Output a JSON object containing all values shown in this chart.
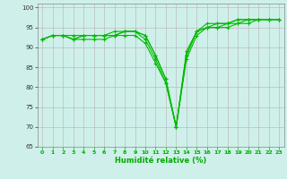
{
  "xlabel": "Humidité relative (%)",
  "ylabel": "",
  "bg_color": "#cff0ea",
  "grid_color": "#bbbbbb",
  "line_color": "#00bb00",
  "label_color": "#00aa00",
  "xlim": [
    -0.5,
    23.5
  ],
  "ylim": [
    65,
    101
  ],
  "yticks": [
    65,
    70,
    75,
    80,
    85,
    90,
    95,
    100
  ],
  "xticks": [
    0,
    1,
    2,
    3,
    4,
    5,
    6,
    7,
    8,
    9,
    10,
    11,
    12,
    13,
    14,
    15,
    16,
    17,
    18,
    19,
    20,
    21,
    22,
    23
  ],
  "series": [
    [
      92,
      93,
      93,
      92,
      93,
      93,
      93,
      93,
      93,
      93,
      91,
      86,
      81,
      70,
      87,
      93,
      95,
      95,
      96,
      96,
      97,
      97,
      97,
      97
    ],
    [
      92,
      93,
      93,
      93,
      93,
      93,
      93,
      93,
      94,
      94,
      92,
      87,
      81,
      70,
      88,
      94,
      95,
      96,
      96,
      97,
      97,
      97,
      97,
      97
    ],
    [
      92,
      93,
      93,
      92,
      93,
      93,
      93,
      94,
      94,
      94,
      93,
      88,
      82,
      70,
      89,
      94,
      96,
      96,
      96,
      97,
      97,
      97,
      97,
      97
    ],
    [
      92,
      93,
      93,
      92,
      92,
      92,
      92,
      93,
      94,
      94,
      93,
      88,
      82,
      70,
      88,
      94,
      95,
      95,
      95,
      96,
      96,
      97,
      97,
      97
    ]
  ]
}
